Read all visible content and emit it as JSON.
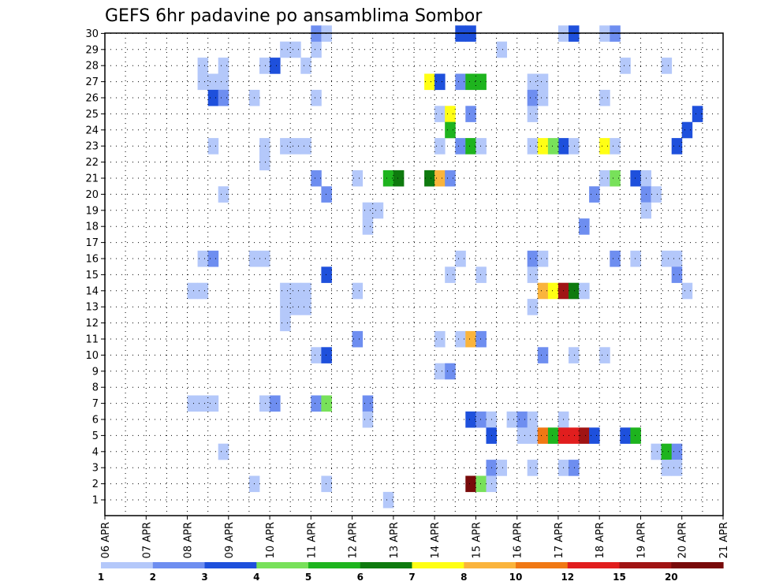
{
  "chart_data": {
    "type": "heatmap",
    "title": "GEFS 6hr padavine po ansamblima Sombor",
    "x_tick_labels": [
      "06 APR",
      "07 APR",
      "08 APR",
      "09 APR",
      "10 APR",
      "11 APR",
      "12 APR",
      "13 APR",
      "14 APR",
      "15 APR",
      "16 APR",
      "17 APR",
      "18 APR",
      "19 APR",
      "20 APR",
      "21 APR"
    ],
    "y_tick_labels": [
      "1",
      "2",
      "3",
      "4",
      "5",
      "6",
      "7",
      "8",
      "9",
      "10",
      "11",
      "12",
      "13",
      "14",
      "15",
      "16",
      "17",
      "18",
      "19",
      "20",
      "21",
      "22",
      "23",
      "24",
      "25",
      "26",
      "27",
      "28",
      "29",
      "30"
    ],
    "x_unit_note": "time steps of 6 hours from 06 APR 00Z",
    "y_range": [
      1,
      30
    ],
    "grid": true,
    "legend": {
      "placement": "bottom",
      "colors": [
        "#b4c8fa",
        "#6e8ef0",
        "#1e50dc",
        "#78e15a",
        "#1eb41e",
        "#0e7a0e",
        "#ffff14",
        "#fab43c",
        "#f07814",
        "#e11e1e",
        "#a01414",
        "#780a0a"
      ],
      "labels": [
        "1",
        "2",
        "3",
        "4",
        "5",
        "6",
        "7",
        "8",
        "10",
        "12",
        "15",
        "20"
      ]
    },
    "cells": [
      [
        38,
        30,
        1
      ],
      [
        42,
        30,
        3
      ],
      [
        51,
        30,
        1
      ],
      [
        53,
        30,
        3
      ],
      [
        46,
        29,
        1
      ],
      [
        48,
        28,
        2
      ],
      [
        44,
        27,
        7
      ],
      [
        45,
        27,
        3
      ],
      [
        47,
        27,
        3
      ],
      [
        48,
        27,
        5
      ],
      [
        49,
        27,
        5
      ],
      [
        47,
        26,
        2
      ],
      [
        51,
        26,
        1
      ],
      [
        52,
        26,
        2
      ],
      [
        36,
        25,
        1
      ],
      [
        37,
        25,
        7
      ],
      [
        47,
        25,
        2
      ],
      [
        40,
        24,
        5
      ],
      [
        39,
        23,
        1
      ],
      [
        45,
        23,
        2
      ],
      [
        46,
        23,
        5
      ],
      [
        47,
        23,
        1
      ],
      [
        49,
        23,
        1
      ],
      [
        50,
        23,
        1
      ],
      [
        51,
        23,
        7
      ],
      [
        52,
        23,
        4
      ],
      [
        53,
        23,
        2
      ],
      [
        54,
        23,
        1
      ],
      [
        52,
        22,
        1
      ],
      [
        40,
        21,
        1
      ],
      [
        42,
        21,
        4
      ],
      [
        43,
        21,
        6
      ],
      [
        45,
        21,
        6
      ],
      [
        46,
        21,
        8
      ],
      [
        47,
        21,
        2
      ],
      [
        55,
        21,
        1
      ],
      [
        56,
        21,
        4
      ],
      [
        41,
        20,
        2
      ],
      [
        55,
        20,
        2
      ],
      [
        52,
        18,
        2
      ],
      [
        59,
        18,
        1
      ],
      [
        50,
        16,
        1
      ],
      [
        51,
        16,
        2
      ],
      [
        53,
        16,
        1
      ],
      [
        56,
        16,
        1
      ],
      [
        57,
        16,
        1
      ],
      [
        45,
        15,
        1
      ],
      [
        47,
        15,
        1
      ],
      [
        50,
        15,
        1
      ],
      [
        53,
        15,
        8
      ],
      [
        54,
        15,
        7
      ],
      [
        55,
        15,
        11
      ],
      [
        56,
        15,
        6
      ],
      [
        57,
        15,
        1
      ],
      [
        51,
        13,
        1
      ],
      [
        52,
        12,
        1
      ],
      [
        45,
        11,
        1
      ],
      [
        46,
        11,
        8
      ],
      [
        47,
        11,
        2
      ],
      [
        41,
        10,
        1
      ],
      [
        42,
        10,
        1
      ],
      [
        41,
        9,
        1
      ],
      [
        46,
        6,
        3
      ],
      [
        47,
        6,
        2
      ],
      [
        48,
        6,
        1
      ],
      [
        49,
        6,
        1
      ],
      [
        50,
        6,
        2
      ],
      [
        51,
        6,
        1
      ],
      [
        52,
        6,
        1
      ],
      [
        47,
        5,
        3
      ],
      [
        50,
        5,
        1
      ],
      [
        51,
        5,
        1
      ],
      [
        52,
        5,
        9
      ],
      [
        53,
        5,
        5
      ],
      [
        54,
        5,
        10
      ],
      [
        55,
        5,
        10
      ],
      [
        56,
        5,
        11
      ],
      [
        57,
        5,
        3
      ],
      [
        59,
        5,
        3
      ],
      [
        60,
        5,
        5
      ],
      [
        46,
        3,
        2
      ],
      [
        47,
        3,
        1
      ],
      [
        50,
        3,
        1
      ],
      [
        53,
        3,
        1
      ],
      [
        54,
        3,
        2
      ],
      [
        45,
        2,
        12
      ],
      [
        46,
        2,
        4
      ],
      [
        47,
        2,
        1
      ]
    ],
    "cells_left": [
      [
        36,
        27,
        5
      ],
      [
        37,
        27,
        5
      ],
      [
        26,
        21,
        5
      ],
      [
        27,
        21,
        6
      ],
      [
        20,
        21,
        1
      ],
      [
        17,
        21,
        1
      ],
      [
        24,
        12,
        1
      ],
      [
        21,
        12,
        1
      ],
      [
        22,
        12,
        1
      ],
      [
        18,
        12,
        1
      ],
      [
        19,
        12,
        1
      ],
      [
        15,
        14,
        1
      ],
      [
        16,
        14,
        1
      ],
      [
        17,
        14,
        1
      ],
      [
        14,
        14,
        1
      ],
      [
        15,
        13,
        1
      ]
    ],
    "all_cells": [
      [
        9,
        28,
        1
      ],
      [
        11,
        28,
        1
      ],
      [
        15,
        28,
        1
      ],
      [
        16,
        28,
        3
      ],
      [
        9,
        27,
        1
      ],
      [
        10,
        27,
        1
      ],
      [
        11,
        27,
        1
      ],
      [
        10,
        26,
        3
      ],
      [
        11,
        26,
        2
      ],
      [
        14,
        26,
        1
      ],
      [
        20,
        26,
        1
      ],
      [
        19,
        28,
        1
      ],
      [
        17,
        29,
        1
      ],
      [
        18,
        29,
        1
      ],
      [
        20,
        29,
        1
      ],
      [
        20,
        30,
        2
      ],
      [
        21,
        30,
        1
      ],
      [
        35,
        30,
        3
      ],
      [
        10,
        23,
        1
      ],
      [
        15,
        23,
        1
      ],
      [
        17,
        23,
        1
      ],
      [
        18,
        23,
        1
      ],
      [
        19,
        23,
        1
      ],
      [
        15,
        22,
        1
      ],
      [
        20,
        21,
        2
      ],
      [
        24,
        21,
        1
      ],
      [
        27,
        21,
        5
      ],
      [
        28,
        21,
        6
      ],
      [
        31,
        21,
        6
      ],
      [
        32,
        21,
        8
      ],
      [
        33,
        21,
        2
      ],
      [
        11,
        20,
        1
      ],
      [
        21,
        20,
        2
      ],
      [
        25,
        19,
        1
      ],
      [
        26,
        19,
        1
      ],
      [
        25,
        18,
        1
      ],
      [
        9,
        16,
        1
      ],
      [
        10,
        16,
        2
      ],
      [
        14,
        16,
        1
      ],
      [
        15,
        16,
        1
      ],
      [
        21,
        15,
        3
      ],
      [
        8,
        14,
        1
      ],
      [
        9,
        14,
        1
      ],
      [
        24,
        14,
        1
      ],
      [
        17,
        14,
        1
      ],
      [
        18,
        14,
        1
      ],
      [
        19,
        14,
        1
      ],
      [
        17,
        13,
        1
      ],
      [
        18,
        13,
        1
      ],
      [
        19,
        13,
        1
      ],
      [
        17,
        12,
        1
      ],
      [
        24,
        11,
        2
      ],
      [
        20,
        10,
        1
      ],
      [
        21,
        10,
        3
      ],
      [
        8,
        7,
        1
      ],
      [
        9,
        7,
        1
      ],
      [
        10,
        7,
        1
      ],
      [
        15,
        7,
        1
      ],
      [
        16,
        7,
        2
      ],
      [
        20,
        7,
        2
      ],
      [
        21,
        7,
        4
      ],
      [
        25,
        7,
        2
      ],
      [
        25,
        6,
        1
      ],
      [
        11,
        4,
        1
      ],
      [
        14,
        2,
        1
      ],
      [
        21,
        2,
        1
      ],
      [
        27,
        1,
        1
      ],
      [
        31,
        27,
        7
      ],
      [
        32,
        27,
        3
      ],
      [
        34,
        27,
        2
      ],
      [
        35,
        27,
        5
      ],
      [
        36,
        27,
        5
      ],
      [
        32,
        25,
        1
      ],
      [
        33,
        25,
        7
      ],
      [
        35,
        25,
        2
      ],
      [
        33,
        24,
        5
      ],
      [
        32,
        23,
        1
      ],
      [
        34,
        23,
        2
      ],
      [
        35,
        23,
        5
      ],
      [
        36,
        23,
        1
      ],
      [
        31,
        21,
        6
      ],
      [
        32,
        21,
        8
      ],
      [
        33,
        21,
        2
      ],
      [
        34,
        16,
        1
      ],
      [
        33,
        15,
        1
      ],
      [
        36,
        15,
        1
      ],
      [
        32,
        11,
        1
      ],
      [
        34,
        11,
        1
      ],
      [
        35,
        11,
        8
      ],
      [
        36,
        11,
        2
      ],
      [
        32,
        9,
        1
      ],
      [
        33,
        9,
        2
      ],
      [
        35,
        6,
        3
      ],
      [
        36,
        6,
        2
      ],
      [
        37,
        6,
        1
      ],
      [
        39,
        6,
        1
      ],
      [
        40,
        6,
        2
      ],
      [
        41,
        6,
        1
      ],
      [
        44,
        6,
        1
      ],
      [
        37,
        5,
        3
      ],
      [
        40,
        5,
        1
      ],
      [
        41,
        5,
        1
      ],
      [
        42,
        5,
        9
      ],
      [
        43,
        5,
        5
      ],
      [
        44,
        5,
        10
      ],
      [
        45,
        5,
        10
      ],
      [
        46,
        5,
        11
      ],
      [
        47,
        5,
        3
      ],
      [
        50,
        5,
        3
      ],
      [
        51,
        5,
        5
      ],
      [
        37,
        3,
        2
      ],
      [
        38,
        3,
        1
      ],
      [
        41,
        3,
        1
      ],
      [
        44,
        3,
        1
      ],
      [
        45,
        3,
        2
      ],
      [
        35,
        2,
        12
      ],
      [
        36,
        2,
        4
      ],
      [
        37,
        2,
        1
      ],
      [
        34,
        30,
        3
      ],
      [
        38,
        29,
        1
      ],
      [
        44,
        30,
        1
      ],
      [
        45,
        30,
        3
      ],
      [
        48,
        30,
        1
      ],
      [
        49,
        30,
        2
      ],
      [
        41,
        27,
        1
      ],
      [
        41,
        26,
        2
      ],
      [
        42,
        26,
        1
      ],
      [
        42,
        27,
        1
      ],
      [
        44,
        23,
        3
      ],
      [
        45,
        23,
        1
      ],
      [
        41,
        23,
        1
      ],
      [
        42,
        23,
        7
      ],
      [
        43,
        23,
        4
      ],
      [
        48,
        23,
        7
      ],
      [
        49,
        23,
        1
      ],
      [
        41,
        25,
        1
      ],
      [
        48,
        26,
        1
      ],
      [
        48,
        21,
        1
      ],
      [
        49,
        21,
        4
      ],
      [
        51,
        21,
        3
      ],
      [
        52,
        21,
        1
      ],
      [
        52,
        20,
        2
      ],
      [
        53,
        20,
        1
      ],
      [
        52,
        19,
        1
      ],
      [
        47,
        20,
        2
      ],
      [
        46,
        18,
        2
      ],
      [
        41,
        16,
        2
      ],
      [
        42,
        16,
        1
      ],
      [
        49,
        16,
        2
      ],
      [
        51,
        16,
        1
      ],
      [
        54,
        16,
        1
      ],
      [
        55,
        16,
        1
      ],
      [
        55,
        15,
        2
      ],
      [
        41,
        15,
        1
      ],
      [
        42,
        14,
        8
      ],
      [
        43,
        14,
        7
      ],
      [
        44,
        14,
        11
      ],
      [
        45,
        14,
        6
      ],
      [
        46,
        14,
        1
      ],
      [
        41,
        13,
        1
      ],
      [
        56,
        14,
        1
      ],
      [
        42,
        10,
        2
      ],
      [
        45,
        10,
        1
      ],
      [
        48,
        10,
        1
      ],
      [
        53,
        4,
        1
      ],
      [
        54,
        4,
        5
      ],
      [
        55,
        4,
        2
      ],
      [
        54,
        3,
        1
      ],
      [
        55,
        3,
        1
      ],
      [
        56,
        24,
        3
      ],
      [
        55,
        23,
        3
      ],
      [
        57,
        25,
        3
      ],
      [
        54,
        28,
        1
      ],
      [
        50,
        28,
        1
      ]
    ]
  }
}
